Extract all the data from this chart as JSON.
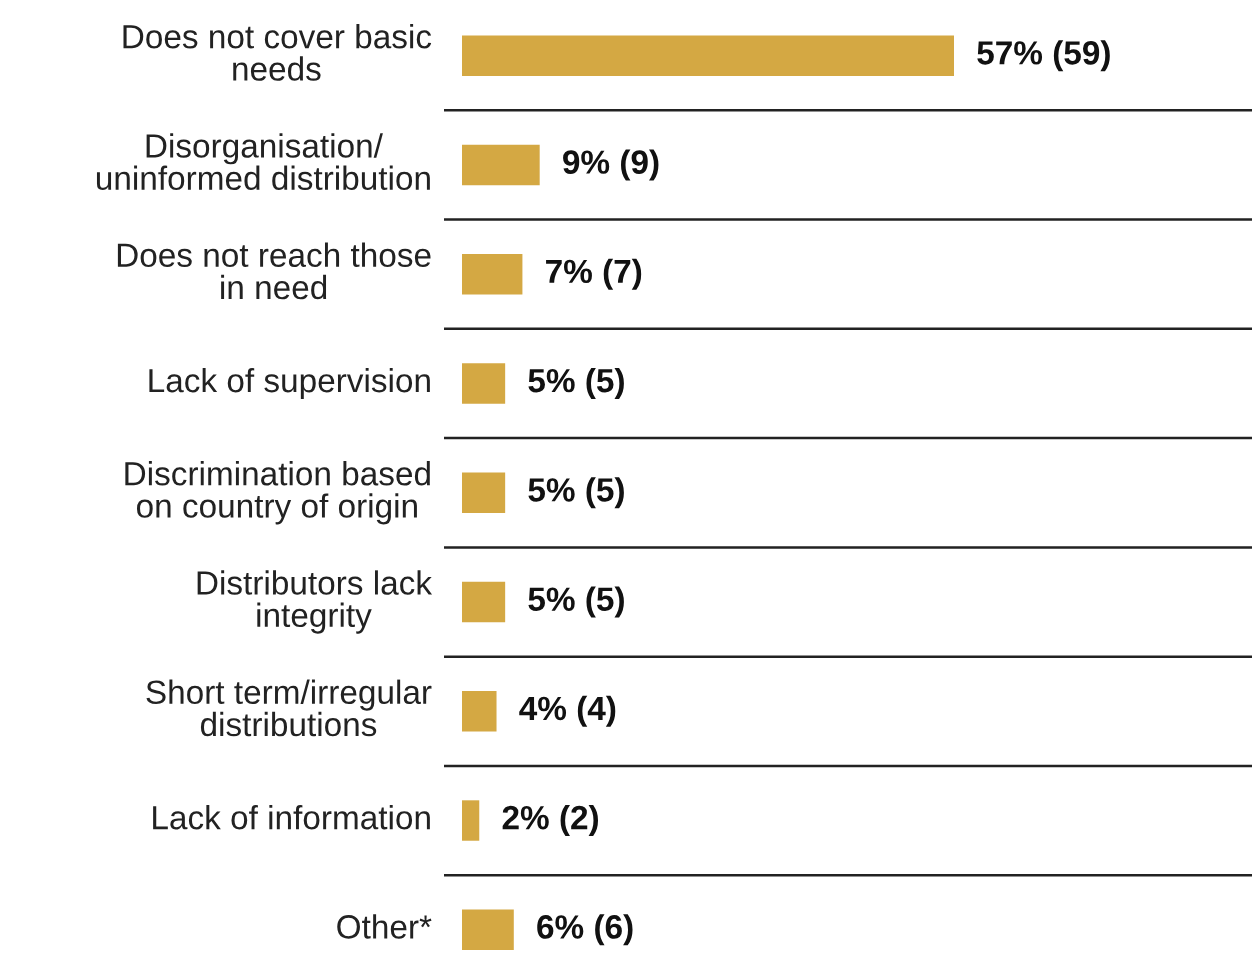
{
  "chart_data": {
    "type": "bar",
    "orientation": "horizontal",
    "grid": "y",
    "categories": [
      "Does not cover basic\nneeds",
      "Disorganisation/\nuninformed distribution",
      "Does not reach those\nin need",
      "Lack of supervision",
      "Discrimination based\non country of origin",
      "Distributors lack\nintegrity",
      "Short term/irregular\ndistributions",
      "Lack of information",
      "Other*"
    ],
    "values": [
      57,
      9,
      7,
      5,
      5,
      5,
      4,
      2,
      6
    ],
    "value_labels": [
      "57% (59)",
      "9% (9)",
      "7% (7)",
      "5% (5)",
      "5% (5)",
      "5% (5)",
      "4% (4)",
      "2% (2)",
      "6% (6)"
    ],
    "color": "#d4a843"
  }
}
